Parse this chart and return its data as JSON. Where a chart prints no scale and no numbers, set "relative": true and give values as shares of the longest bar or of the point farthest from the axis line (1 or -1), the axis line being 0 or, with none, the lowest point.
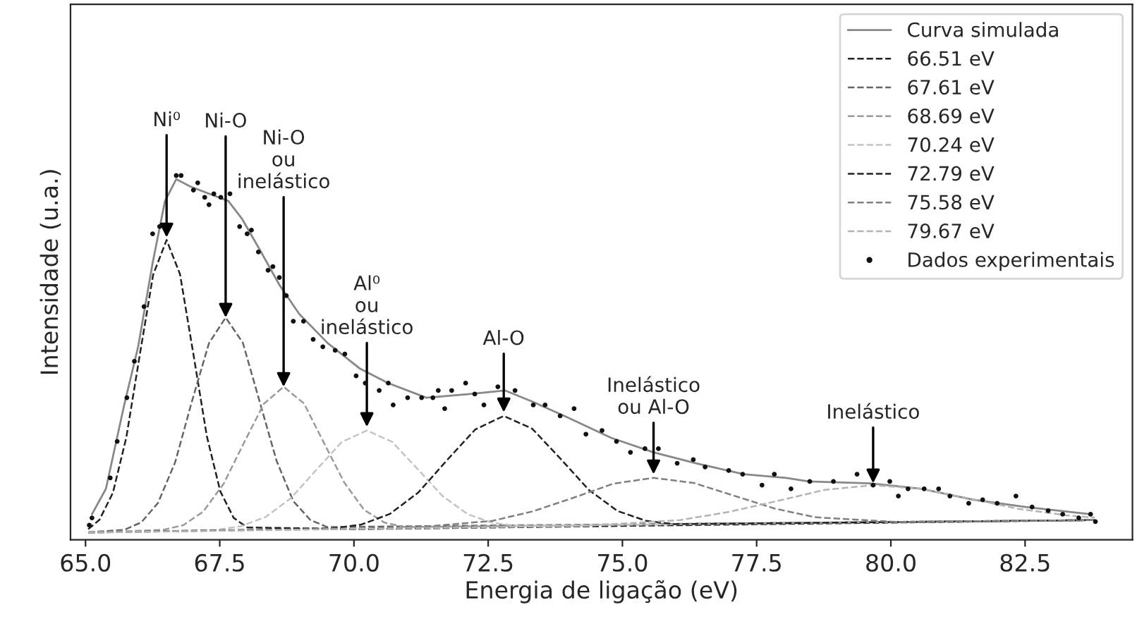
{
  "chart_data": {
    "type": "line",
    "relative": true,
    "xlabel": "Energia de ligação (eV)",
    "ylabel": "Intensidade (u.a.)",
    "xlim": [
      64.72,
      84.5
    ],
    "xticks": [
      {
        "value": 65,
        "label": "65.0"
      },
      {
        "value": 67.5,
        "label": "67.5"
      },
      {
        "value": 70,
        "label": "70.0"
      },
      {
        "value": 72.5,
        "label": "72.5"
      },
      {
        "value": 75,
        "label": "75.0"
      },
      {
        "value": 77.5,
        "label": "77.5"
      },
      {
        "value": 80,
        "label": "80.0"
      },
      {
        "value": 82.5,
        "label": "82.5"
      }
    ],
    "tick_labels": "x",
    "legend": "top right",
    "series": [
      {
        "name": "Curva simulada",
        "line_style": "solid",
        "color": "#888888",
        "x": [
          65.12,
          65.38,
          65.72,
          65.98,
          66.25,
          66.48,
          66.69,
          66.95,
          67.3,
          67.66,
          67.92,
          68.27,
          68.61,
          68.98,
          69.51,
          70.11,
          70.64,
          71.35,
          72.16,
          72.81,
          73.31,
          73.92,
          74.79,
          75.58,
          76.37,
          77.26,
          78.05,
          78.47,
          79.62,
          80.57,
          81.54,
          82.51,
          83.72
        ],
        "values": [
          0.07,
          0.14,
          0.37,
          0.53,
          0.76,
          0.93,
          0.99,
          0.97,
          0.95,
          0.93,
          0.88,
          0.79,
          0.7,
          0.62,
          0.54,
          0.47,
          0.43,
          0.39,
          0.4,
          0.41,
          0.38,
          0.34,
          0.28,
          0.24,
          0.21,
          0.18,
          0.17,
          0.16,
          0.155,
          0.14,
          0.11,
          0.09,
          0.07
        ]
      },
      {
        "name": "66.51 eV",
        "line_style": "dashed",
        "color": "#222222",
        "x": [
          65.05,
          65.26,
          65.51,
          65.76,
          66.01,
          66.26,
          66.51,
          66.76,
          67.01,
          67.26,
          67.51,
          67.76,
          68.01,
          70,
          75,
          83.8
        ],
        "values": [
          0.029,
          0.055,
          0.129,
          0.281,
          0.507,
          0.728,
          0.823,
          0.729,
          0.509,
          0.284,
          0.133,
          0.06,
          0.034,
          0.029,
          0.038,
          0.054
        ]
      },
      {
        "name": "67.61 eV",
        "line_style": "dashed",
        "color": "#666666",
        "x": [
          65.05,
          65.72,
          66.04,
          66.35,
          66.67,
          66.98,
          67.3,
          67.61,
          67.93,
          68.24,
          68.56,
          68.87,
          69.19,
          69.5,
          83.8
        ],
        "values": [
          0.021,
          0.027,
          0.048,
          0.101,
          0.213,
          0.379,
          0.54,
          0.61,
          0.541,
          0.381,
          0.216,
          0.106,
          0.054,
          0.035,
          0.054
        ]
      },
      {
        "name": "68.69 eV",
        "line_style": "dashed",
        "color": "#9a9a9a",
        "x": [
          65.05,
          66.44,
          66.82,
          67.19,
          67.57,
          67.94,
          68.32,
          68.69,
          69.07,
          69.44,
          69.82,
          70.19,
          70.57,
          70.94,
          83.8
        ],
        "values": [
          0.02,
          0.027,
          0.04,
          0.077,
          0.153,
          0.263,
          0.373,
          0.42,
          0.374,
          0.266,
          0.157,
          0.082,
          0.047,
          0.035,
          0.054
        ]
      },
      {
        "name": "70.24 eV",
        "line_style": "dashed",
        "color": "#c4c4c4",
        "x": [
          65.05,
          67.42,
          67.89,
          68.36,
          68.83,
          69.3,
          69.77,
          70.24,
          70.71,
          71.18,
          71.65,
          72.12,
          72.59,
          73.06,
          83.8
        ],
        "values": [
          0.02,
          0.027,
          0.037,
          0.063,
          0.115,
          0.192,
          0.268,
          0.3,
          0.269,
          0.195,
          0.12,
          0.07,
          0.046,
          0.038,
          0.054
        ]
      },
      {
        "name": "72.79 eV",
        "line_style": "dashed",
        "color": "#222222",
        "x": [
          65.05,
          69.61,
          70.14,
          70.67,
          71.2,
          71.73,
          72.26,
          72.79,
          73.32,
          73.85,
          74.38,
          74.91,
          75.44,
          75.97,
          83.8
        ],
        "values": [
          0.02,
          0.031,
          0.042,
          0.071,
          0.13,
          0.218,
          0.303,
          0.34,
          0.305,
          0.222,
          0.136,
          0.079,
          0.052,
          0.043,
          0.054
        ]
      },
      {
        "name": "75.58 eV",
        "line_style": "dashed",
        "color": "#808080",
        "x": [
          65.05,
          71.08,
          72.58,
          73.33,
          74.08,
          74.83,
          75.58,
          76.33,
          77.08,
          77.83,
          78.58,
          80.08,
          83.8
        ],
        "values": [
          0.02,
          0.033,
          0.052,
          0.078,
          0.115,
          0.154,
          0.17,
          0.156,
          0.121,
          0.086,
          0.062,
          0.049,
          0.054
        ]
      },
      {
        "name": "79.67 eV",
        "line_style": "dashed",
        "color": "#b4b4b4",
        "x": [
          65.05,
          74.27,
          76.07,
          76.97,
          77.87,
          78.77,
          79.67,
          80.57,
          81.47,
          82.37,
          83.27,
          83.8
        ],
        "values": [
          0.02,
          0.038,
          0.054,
          0.076,
          0.106,
          0.137,
          0.15,
          0.14,
          0.113,
          0.085,
          0.067,
          0.061
        ]
      },
      {
        "name": "Dados experimentais",
        "type": "scatter",
        "marker": "circle",
        "color": "#111111",
        "x": [
          65.07,
          65.12,
          65.46,
          65.59,
          65.77,
          65.91,
          66.09,
          66.25,
          66.38,
          66.69,
          66.78,
          67.01,
          67.09,
          67.22,
          67.3,
          67.39,
          67.52,
          67.69,
          67.87,
          68.01,
          68.09,
          68.22,
          68.4,
          68.49,
          68.61,
          68.74,
          68.87,
          69.06,
          69.24,
          69.42,
          69.65,
          69.83,
          70.04,
          70.21,
          70.47,
          70.64,
          70.73,
          71.0,
          71.26,
          71.47,
          71.57,
          71.69,
          71.82,
          72.08,
          72.25,
          72.42,
          72.68,
          73.0,
          73.34,
          73.56,
          73.84,
          74.1,
          74.32,
          74.62,
          74.89,
          75.15,
          75.42,
          75.67,
          76.02,
          76.32,
          76.54,
          76.98,
          77.24,
          77.6,
          77.83,
          78.14,
          78.49,
          78.93,
          79.37,
          79.67,
          79.98,
          80.14,
          80.32,
          80.62,
          80.89,
          81.1,
          81.45,
          81.71,
          81.98,
          82.33,
          82.63,
          82.93,
          83.2,
          83.5,
          83.72,
          83.81
        ],
        "values": [
          0.04,
          0.06,
          0.17,
          0.27,
          0.39,
          0.49,
          0.64,
          0.84,
          0.86,
          1.0,
          1.0,
          0.96,
          0.98,
          0.94,
          0.92,
          0.95,
          0.94,
          0.95,
          0.86,
          0.84,
          0.85,
          0.79,
          0.74,
          0.75,
          0.72,
          0.67,
          0.6,
          0.6,
          0.55,
          0.53,
          0.52,
          0.51,
          0.45,
          0.43,
          0.41,
          0.43,
          0.37,
          0.39,
          0.39,
          0.39,
          0.41,
          0.36,
          0.41,
          0.43,
          0.4,
          0.37,
          0.42,
          0.41,
          0.37,
          0.37,
          0.34,
          0.36,
          0.29,
          0.3,
          0.27,
          0.24,
          0.25,
          0.25,
          0.21,
          0.22,
          0.2,
          0.19,
          0.18,
          0.15,
          0.18,
          0.14,
          0.16,
          0.16,
          0.18,
          0.15,
          0.16,
          0.12,
          0.14,
          0.14,
          0.14,
          0.12,
          0.1,
          0.11,
          0.1,
          0.12,
          0.09,
          0.08,
          0.07,
          0.06,
          0.07,
          0.05
        ]
      }
    ],
    "annotations": [
      {
        "text": "Ni⁰",
        "x": 66.51,
        "y": 0.83
      },
      {
        "text": "Ni-O",
        "x": 67.61,
        "y": 0.61
      },
      {
        "text": "Ni-O\nou\ninelástico",
        "x": 68.69,
        "y": 0.42
      },
      {
        "text": "Al⁰\nou\ninelástico",
        "x": 70.24,
        "y": 0.31
      },
      {
        "text": "Al-O",
        "x": 72.79,
        "y": 0.35
      },
      {
        "text": "Inelástico\nou Al-O",
        "x": 75.58,
        "y": 0.18
      },
      {
        "text": "Inelástico",
        "x": 79.67,
        "y": 0.155
      }
    ]
  }
}
